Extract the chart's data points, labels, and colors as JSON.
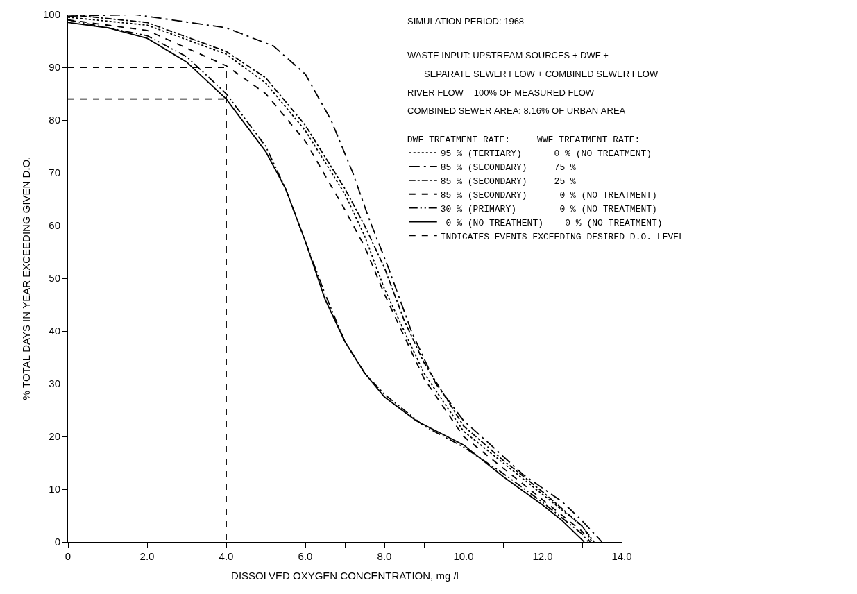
{
  "chart_data": {
    "type": "line",
    "xlabel": "DISSOLVED OXYGEN CONCENTRATION, mg /l",
    "ylabel": "% TOTAL DAYS IN YEAR EXCEEDING GIVEN D.O.",
    "legend_title": "DWF TREATMENT RATE:     WWF TREATMENT RATE:",
    "legend": "top right",
    "grid": false,
    "marker": "none",
    "xlim": [
      0,
      14
    ],
    "ylim": [
      0,
      100
    ],
    "xticks": [
      0,
      {
        "value": 1,
        "label": null
      },
      {
        "value": 2,
        "label": "2.0"
      },
      {
        "value": 3,
        "label": null
      },
      {
        "value": 4,
        "label": "4.0"
      },
      {
        "value": 5,
        "label": null
      },
      {
        "value": 6,
        "label": "6.0"
      },
      {
        "value": 7,
        "label": null
      },
      {
        "value": 8,
        "label": "8.0"
      },
      {
        "value": 9,
        "label": null
      },
      {
        "value": 10,
        "label": "10.0"
      },
      {
        "value": 11,
        "label": null
      },
      {
        "value": 12,
        "label": "12.0"
      },
      {
        "value": 13,
        "label": null
      },
      {
        "value": 14,
        "label": "14.0"
      }
    ],
    "yticks": [
      0,
      10,
      20,
      30,
      40,
      50,
      60,
      70,
      80,
      90,
      100
    ],
    "annotations": [
      "SIMULATION PERIOD: 1968",
      "WASTE INPUT: UPSTREAM SOURCES + DWF +",
      "SEPARATE SEWER FLOW + COMBINED SEWER FLOW",
      "RIVER FLOW = 100% OF MEASURED FLOW",
      "COMBINED SEWER AREA: 8.16% OF URBAN AREA"
    ],
    "series": [
      {
        "name": "95 % (TERTIARY)      0 % (NO TREATMENT)",
        "color": "#000000",
        "line_style": "dotted",
        "x": [
          0,
          2,
          4,
          5,
          6,
          7,
          7.5,
          8,
          8.5,
          9,
          10,
          11,
          12,
          13,
          13.25
        ],
        "values": [
          99.5,
          98,
          92.5,
          87,
          78,
          66,
          58,
          48,
          40,
          32,
          21,
          15,
          9,
          3,
          0
        ]
      },
      {
        "name": "85 % (SECONDARY)     75 %",
        "color": "#000000",
        "line_style": "longdashdot",
        "x": [
          0,
          1.7,
          4,
          5.2,
          6,
          6.65,
          7.2,
          7.6,
          8.1,
          8.7,
          9.3,
          10,
          10.6,
          11.5,
          12.5,
          13,
          13.5
        ],
        "values": [
          99.7,
          100,
          97.5,
          94,
          88.7,
          80,
          70,
          61.5,
          52,
          39.6,
          30,
          23,
          19,
          12.8,
          7.6,
          4,
          0
        ]
      },
      {
        "name": "85 % (SECONDARY)     25 %",
        "color": "#000000",
        "line_style": "dashdot",
        "x": [
          0,
          2,
          4,
          5,
          6,
          7,
          7.5,
          8,
          8.5,
          9,
          10,
          11,
          12,
          13,
          13.3
        ],
        "values": [
          100,
          98.5,
          93,
          88,
          79,
          67,
          60,
          52,
          42,
          34,
          22,
          15.5,
          9.5,
          3,
          0
        ]
      },
      {
        "name": "85 % (SECONDARY)      0 % (NO TREATMENT)",
        "color": "#000000",
        "line_style": "dashed",
        "x": [
          0,
          2,
          4,
          5,
          6,
          7,
          7.5,
          8,
          8.5,
          9,
          10,
          11,
          12,
          13,
          13.2
        ],
        "values": [
          99,
          97,
          90.3,
          85,
          76,
          63,
          56,
          47,
          39,
          31,
          20,
          14,
          8,
          2,
          0
        ]
      },
      {
        "name": "30 % (PRIMARY)        0 % (NO TREATMENT)",
        "color": "#000000",
        "line_style": "dashdotdot",
        "x": [
          0,
          2,
          3,
          4,
          5,
          5.5,
          6,
          6.5,
          7,
          7.5,
          8,
          9,
          10,
          11,
          12,
          13,
          13.15
        ],
        "values": [
          99,
          96,
          92,
          85,
          75,
          67,
          57,
          47,
          38,
          32,
          28,
          22,
          18,
          13,
          7.5,
          1.5,
          0
        ]
      },
      {
        "name": " 0 % (NO TREATMENT)    0 % (NO TREATMENT)",
        "color": "#000000",
        "line_style": "solid",
        "x": [
          0,
          1,
          2,
          3,
          4,
          4.5,
          5,
          5.5,
          6,
          6.5,
          7,
          7.5,
          8,
          8.8,
          10,
          11,
          12,
          12.5,
          13.05
        ],
        "values": [
          98.5,
          97.5,
          95.5,
          91,
          84,
          79,
          74,
          67,
          57,
          46,
          38,
          32,
          27.5,
          23,
          18.4,
          12.4,
          7,
          4,
          0
        ]
      },
      {
        "name": "INDICATES EVENTS EXCEEDING DESIRED D.O. LEVEL",
        "color": "#000000",
        "line_style": "dashed",
        "x": [
          0,
          4,
          4
        ],
        "values": [
          90,
          90,
          0
        ]
      },
      {
        "color": "#000000",
        "line_style": "dashed",
        "x": [
          0,
          4
        ],
        "values": [
          84,
          84
        ]
      }
    ]
  }
}
